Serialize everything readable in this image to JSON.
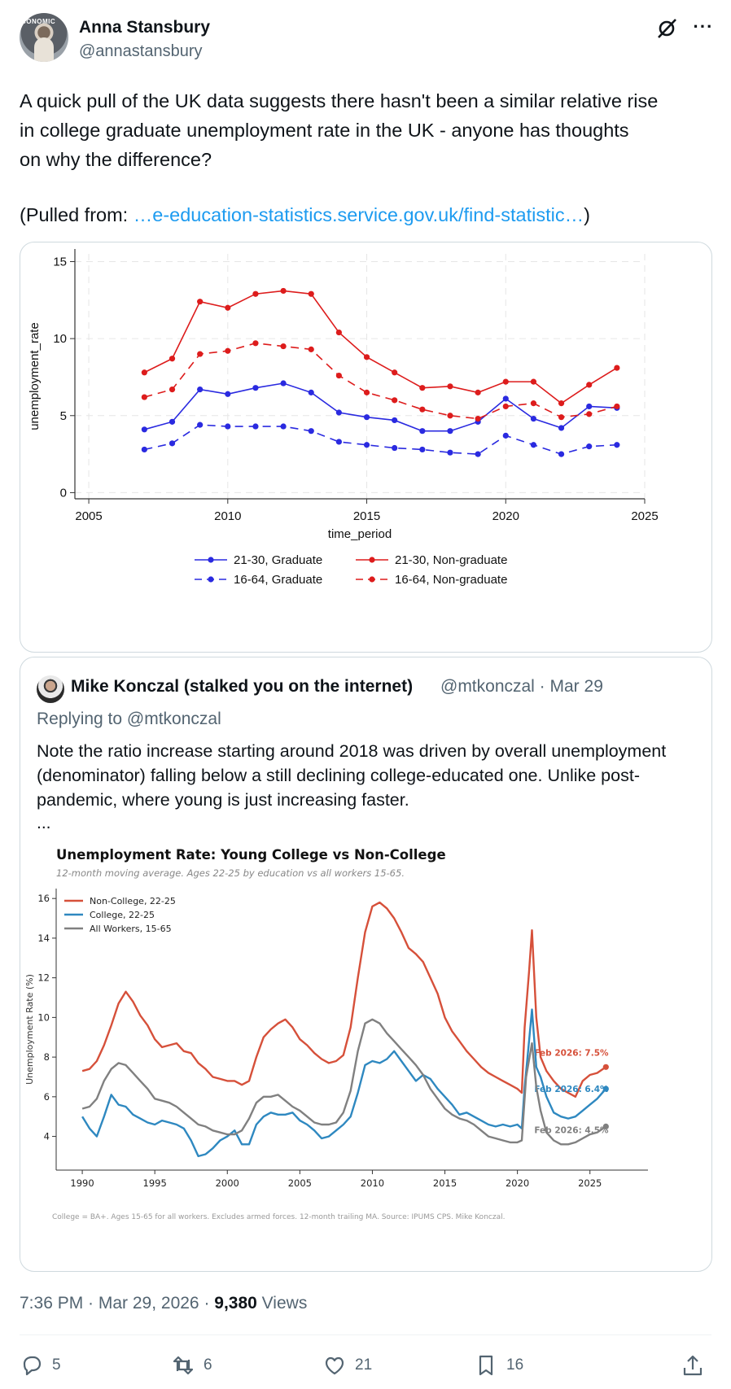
{
  "author": {
    "name": "Anna Stansbury",
    "handle": "@annastansbury",
    "avatar_banner": "CONOMIC"
  },
  "tweet": {
    "text": "A quick pull of the UK data suggests there hasn't been a similar relative rise\nin college graduate unemployment rate in the UK - anyone has thoughts\non why the difference?",
    "source_prefix": "(Pulled from: ",
    "source_link": "…e-education-statistics.service.gov.uk/find-statistic…",
    "source_suffix": ")"
  },
  "chart_uk": {
    "type": "line",
    "xlabel": "time_period",
    "ylabel": "unemployment_rate",
    "xlim": [
      2004.5,
      2025
    ],
    "ylim": [
      -0.4,
      15.5
    ],
    "x_ticks": [
      2005,
      2010,
      2015,
      2020,
      2025
    ],
    "y_ticks": [
      0,
      5,
      10,
      15
    ],
    "grid": true,
    "legend_position": "bottom",
    "x": [
      2007,
      2008,
      2009,
      2010,
      2011,
      2012,
      2013,
      2014,
      2015,
      2016,
      2017,
      2018,
      2019,
      2020,
      2021,
      2022,
      2023,
      2024
    ],
    "series": [
      {
        "name": "21-30, Graduate",
        "color": "#2a2ae0",
        "dash": false,
        "values": [
          4.1,
          4.6,
          6.7,
          6.4,
          6.8,
          7.1,
          6.5,
          5.2,
          4.9,
          4.7,
          4.0,
          4.0,
          4.6,
          6.1,
          4.8,
          4.2,
          5.6,
          5.5
        ]
      },
      {
        "name": "21-30, Non-graduate",
        "color": "#dd1c1c",
        "dash": false,
        "values": [
          7.8,
          8.7,
          12.4,
          12.0,
          12.9,
          13.1,
          12.9,
          10.4,
          8.8,
          7.8,
          6.8,
          6.9,
          6.5,
          7.2,
          7.2,
          5.8,
          7.0,
          8.1
        ]
      },
      {
        "name": "16-64, Graduate",
        "color": "#2a2ae0",
        "dash": true,
        "values": [
          2.8,
          3.2,
          4.4,
          4.3,
          4.3,
          4.3,
          4.0,
          3.3,
          3.1,
          2.9,
          2.8,
          2.6,
          2.5,
          3.7,
          3.1,
          2.5,
          3.0,
          3.1
        ]
      },
      {
        "name": "16-64, Non-graduate",
        "color": "#dd1c1c",
        "dash": true,
        "values": [
          6.2,
          6.7,
          9.0,
          9.2,
          9.7,
          9.5,
          9.3,
          7.6,
          6.5,
          6.0,
          5.4,
          5.0,
          4.8,
          5.6,
          5.8,
          4.9,
          5.1,
          5.6
        ]
      }
    ]
  },
  "quote": {
    "name": "Mike Konczal (stalked you on the internet)",
    "handle_date": "@mtkonczal · Mar 29",
    "replying": "Replying to @mtkonczal",
    "text": "Note the ratio increase starting around 2018 was driven by overall unemployment\n(denominator) falling below a still declining college-educated one. Unlike post-\npandemic, where young is just increasing faster.",
    "ellipsis": "..."
  },
  "chart_us": {
    "type": "line",
    "title": "Unemployment Rate: Young College vs Non-College",
    "subtitle": "12-month moving average. Ages 22-25 by education vs all workers 15-65.",
    "ylabel": "Unemployment Rate (%)",
    "footnote": "College = BA+. Ages 15-65 for all workers. Excludes armed forces. 12-month trailing MA. Source: IPUMS CPS. Mike Konczal.",
    "xlim": [
      1988.2,
      2029
    ],
    "ylim": [
      2.3,
      16.5
    ],
    "x_ticks": [
      1990,
      1995,
      2000,
      2005,
      2010,
      2015,
      2020,
      2025
    ],
    "y_ticks": [
      4,
      6,
      8,
      10,
      12,
      14,
      16
    ],
    "legend_position": "top-left",
    "series": [
      {
        "name": "Non-College, 22-25",
        "color": "#d6503a",
        "end_label": "Feb 2026: 7.5%",
        "points": [
          [
            1990,
            7.3
          ],
          [
            1990.5,
            7.4
          ],
          [
            1991,
            7.8
          ],
          [
            1991.5,
            8.6
          ],
          [
            1992,
            9.6
          ],
          [
            1992.5,
            10.7
          ],
          [
            1993,
            11.3
          ],
          [
            1993.5,
            10.8
          ],
          [
            1994,
            10.1
          ],
          [
            1994.5,
            9.6
          ],
          [
            1995,
            8.9
          ],
          [
            1995.5,
            8.5
          ],
          [
            1996,
            8.6
          ],
          [
            1996.5,
            8.7
          ],
          [
            1997,
            8.3
          ],
          [
            1997.5,
            8.2
          ],
          [
            1998,
            7.7
          ],
          [
            1998.5,
            7.4
          ],
          [
            1999,
            7.0
          ],
          [
            1999.5,
            6.9
          ],
          [
            2000,
            6.8
          ],
          [
            2000.5,
            6.8
          ],
          [
            2001,
            6.6
          ],
          [
            2001.5,
            6.8
          ],
          [
            2002,
            8.0
          ],
          [
            2002.5,
            9.0
          ],
          [
            2003,
            9.4
          ],
          [
            2003.5,
            9.7
          ],
          [
            2004,
            9.9
          ],
          [
            2004.5,
            9.5
          ],
          [
            2005,
            8.9
          ],
          [
            2005.5,
            8.6
          ],
          [
            2006,
            8.2
          ],
          [
            2006.5,
            7.9
          ],
          [
            2007,
            7.7
          ],
          [
            2007.5,
            7.8
          ],
          [
            2008,
            8.1
          ],
          [
            2008.5,
            9.5
          ],
          [
            2009,
            12.0
          ],
          [
            2009.5,
            14.3
          ],
          [
            2010,
            15.6
          ],
          [
            2010.5,
            15.8
          ],
          [
            2011,
            15.5
          ],
          [
            2011.5,
            15.0
          ],
          [
            2012,
            14.3
          ],
          [
            2012.5,
            13.5
          ],
          [
            2013,
            13.2
          ],
          [
            2013.5,
            12.8
          ],
          [
            2014,
            12.0
          ],
          [
            2014.5,
            11.2
          ],
          [
            2015,
            10.0
          ],
          [
            2015.5,
            9.3
          ],
          [
            2016,
            8.8
          ],
          [
            2016.5,
            8.3
          ],
          [
            2017,
            7.9
          ],
          [
            2017.5,
            7.5
          ],
          [
            2018,
            7.2
          ],
          [
            2018.5,
            7.0
          ],
          [
            2019,
            6.8
          ],
          [
            2019.5,
            6.6
          ],
          [
            2020,
            6.4
          ],
          [
            2020.3,
            6.2
          ],
          [
            2020.5,
            9.5
          ],
          [
            2020.8,
            12.3
          ],
          [
            2021,
            14.4
          ],
          [
            2021.3,
            10.0
          ],
          [
            2021.6,
            8.0
          ],
          [
            2022,
            7.3
          ],
          [
            2022.5,
            6.8
          ],
          [
            2023,
            6.4
          ],
          [
            2023.5,
            6.2
          ],
          [
            2024,
            6.0
          ],
          [
            2024.5,
            6.8
          ],
          [
            2025,
            7.1
          ],
          [
            2025.5,
            7.2
          ],
          [
            2026.1,
            7.5
          ]
        ]
      },
      {
        "name": "College, 22-25",
        "color": "#2e88c0",
        "end_label": "Feb 2026: 6.4%",
        "points": [
          [
            1990,
            5.0
          ],
          [
            1990.5,
            4.4
          ],
          [
            1991,
            4.0
          ],
          [
            1991.5,
            5.0
          ],
          [
            1992,
            6.1
          ],
          [
            1992.5,
            5.6
          ],
          [
            1993,
            5.5
          ],
          [
            1993.5,
            5.1
          ],
          [
            1994,
            4.9
          ],
          [
            1994.5,
            4.7
          ],
          [
            1995,
            4.6
          ],
          [
            1995.5,
            4.8
          ],
          [
            1996,
            4.7
          ],
          [
            1996.5,
            4.6
          ],
          [
            1997,
            4.4
          ],
          [
            1997.5,
            3.8
          ],
          [
            1998,
            3.0
          ],
          [
            1998.5,
            3.1
          ],
          [
            1999,
            3.4
          ],
          [
            1999.5,
            3.8
          ],
          [
            2000,
            4.0
          ],
          [
            2000.5,
            4.3
          ],
          [
            2001,
            3.6
          ],
          [
            2001.5,
            3.6
          ],
          [
            2002,
            4.6
          ],
          [
            2002.5,
            5.0
          ],
          [
            2003,
            5.2
          ],
          [
            2003.5,
            5.1
          ],
          [
            2004,
            5.1
          ],
          [
            2004.5,
            5.2
          ],
          [
            2005,
            4.8
          ],
          [
            2005.5,
            4.6
          ],
          [
            2006,
            4.3
          ],
          [
            2006.5,
            3.9
          ],
          [
            2007,
            4.0
          ],
          [
            2007.5,
            4.3
          ],
          [
            2008,
            4.6
          ],
          [
            2008.5,
            5.0
          ],
          [
            2009,
            6.2
          ],
          [
            2009.5,
            7.6
          ],
          [
            2010,
            7.8
          ],
          [
            2010.5,
            7.7
          ],
          [
            2011,
            7.9
          ],
          [
            2011.5,
            8.3
          ],
          [
            2012,
            7.8
          ],
          [
            2012.5,
            7.3
          ],
          [
            2013,
            6.8
          ],
          [
            2013.5,
            7.1
          ],
          [
            2014,
            6.9
          ],
          [
            2014.5,
            6.4
          ],
          [
            2015,
            6.0
          ],
          [
            2015.5,
            5.6
          ],
          [
            2016,
            5.1
          ],
          [
            2016.5,
            5.2
          ],
          [
            2017,
            5.0
          ],
          [
            2017.5,
            4.8
          ],
          [
            2018,
            4.6
          ],
          [
            2018.5,
            4.5
          ],
          [
            2019,
            4.6
          ],
          [
            2019.5,
            4.5
          ],
          [
            2020,
            4.6
          ],
          [
            2020.3,
            4.4
          ],
          [
            2020.5,
            6.5
          ],
          [
            2020.8,
            8.8
          ],
          [
            2021,
            10.4
          ],
          [
            2021.3,
            7.5
          ],
          [
            2021.6,
            7.0
          ],
          [
            2022,
            6.0
          ],
          [
            2022.5,
            5.2
          ],
          [
            2023,
            5.0
          ],
          [
            2023.5,
            4.9
          ],
          [
            2024,
            5.0
          ],
          [
            2024.5,
            5.3
          ],
          [
            2025,
            5.6
          ],
          [
            2025.5,
            5.9
          ],
          [
            2026.1,
            6.4
          ]
        ]
      },
      {
        "name": "All Workers, 15-65",
        "color": "#808080",
        "end_label": "Feb 2026: 4.5%",
        "points": [
          [
            1990,
            5.4
          ],
          [
            1990.5,
            5.5
          ],
          [
            1991,
            5.9
          ],
          [
            1991.5,
            6.8
          ],
          [
            1992,
            7.4
          ],
          [
            1992.5,
            7.7
          ],
          [
            1993,
            7.6
          ],
          [
            1993.5,
            7.2
          ],
          [
            1994,
            6.8
          ],
          [
            1994.5,
            6.4
          ],
          [
            1995,
            5.9
          ],
          [
            1995.5,
            5.8
          ],
          [
            1996,
            5.7
          ],
          [
            1996.5,
            5.5
          ],
          [
            1997,
            5.2
          ],
          [
            1997.5,
            4.9
          ],
          [
            1998,
            4.6
          ],
          [
            1998.5,
            4.5
          ],
          [
            1999,
            4.3
          ],
          [
            1999.5,
            4.2
          ],
          [
            2000,
            4.1
          ],
          [
            2000.5,
            4.1
          ],
          [
            2001,
            4.3
          ],
          [
            2001.5,
            4.9
          ],
          [
            2002,
            5.7
          ],
          [
            2002.5,
            6.0
          ],
          [
            2003,
            6.0
          ],
          [
            2003.5,
            6.1
          ],
          [
            2004,
            5.8
          ],
          [
            2004.5,
            5.5
          ],
          [
            2005,
            5.3
          ],
          [
            2005.5,
            5.0
          ],
          [
            2006,
            4.7
          ],
          [
            2006.5,
            4.6
          ],
          [
            2007,
            4.6
          ],
          [
            2007.5,
            4.7
          ],
          [
            2008,
            5.2
          ],
          [
            2008.5,
            6.3
          ],
          [
            2009,
            8.3
          ],
          [
            2009.5,
            9.7
          ],
          [
            2010,
            9.9
          ],
          [
            2010.5,
            9.7
          ],
          [
            2011,
            9.2
          ],
          [
            2011.5,
            8.8
          ],
          [
            2012,
            8.4
          ],
          [
            2012.5,
            8.0
          ],
          [
            2013,
            7.6
          ],
          [
            2013.5,
            7.1
          ],
          [
            2014,
            6.4
          ],
          [
            2014.5,
            5.9
          ],
          [
            2015,
            5.4
          ],
          [
            2015.5,
            5.1
          ],
          [
            2016,
            4.9
          ],
          [
            2016.5,
            4.8
          ],
          [
            2017,
            4.6
          ],
          [
            2017.5,
            4.3
          ],
          [
            2018,
            4.0
          ],
          [
            2018.5,
            3.9
          ],
          [
            2019,
            3.8
          ],
          [
            2019.5,
            3.7
          ],
          [
            2020,
            3.7
          ],
          [
            2020.3,
            3.8
          ],
          [
            2020.6,
            7.0
          ],
          [
            2021,
            8.7
          ],
          [
            2021.3,
            6.5
          ],
          [
            2021.6,
            5.3
          ],
          [
            2022,
            4.2
          ],
          [
            2022.5,
            3.8
          ],
          [
            2023,
            3.6
          ],
          [
            2023.5,
            3.6
          ],
          [
            2024,
            3.7
          ],
          [
            2024.5,
            3.9
          ],
          [
            2025,
            4.1
          ],
          [
            2025.5,
            4.2
          ],
          [
            2026.1,
            4.5
          ]
        ]
      }
    ]
  },
  "meta": {
    "time": "7:36 PM · Mar 29, 2026 · ",
    "views_count": "9,380",
    "views_label": " Views"
  },
  "actions": {
    "replies": "5",
    "reposts": "6",
    "likes": "21",
    "bookmarks": "16"
  }
}
